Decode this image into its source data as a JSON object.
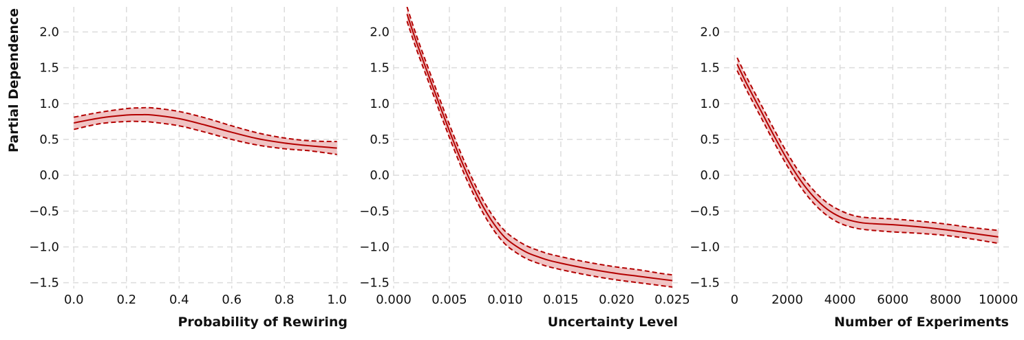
{
  "colors": {
    "line": "#b30000",
    "band": "#f0c4c4",
    "grid": "#dcdcdc"
  },
  "chart_data": [
    {
      "type": "line",
      "title": "",
      "xlabel": "Probability of Rewiring",
      "ylabel": "Partial Dependence",
      "xlim": [
        -0.04,
        1.04
      ],
      "ylim": [
        -1.58,
        2.35
      ],
      "xticks": [
        0.0,
        0.2,
        0.4,
        0.6,
        0.8,
        1.0
      ],
      "xtick_labels": [
        "0.0",
        "0.2",
        "0.4",
        "0.6",
        "0.8",
        "1.0"
      ],
      "yticks": [
        2.0,
        1.5,
        1.0,
        0.5,
        0.0,
        -0.5,
        -1.0,
        -1.5
      ],
      "ytick_labels": [
        "2.0",
        "1.5",
        "1.0",
        "0.5",
        "0.0",
        "−0.5",
        "−1.0",
        "−1.5"
      ],
      "grid": true,
      "x": [
        0.0,
        0.1,
        0.2,
        0.25,
        0.3,
        0.4,
        0.5,
        0.6,
        0.7,
        0.8,
        0.9,
        1.0
      ],
      "mean": [
        0.73,
        0.8,
        0.84,
        0.845,
        0.84,
        0.79,
        0.7,
        0.6,
        0.51,
        0.45,
        0.41,
        0.38
      ],
      "upper": [
        0.81,
        0.88,
        0.93,
        0.94,
        0.94,
        0.89,
        0.8,
        0.69,
        0.59,
        0.52,
        0.48,
        0.47
      ],
      "lower": [
        0.64,
        0.72,
        0.75,
        0.75,
        0.74,
        0.69,
        0.6,
        0.5,
        0.42,
        0.37,
        0.34,
        0.29
      ]
    },
    {
      "type": "line",
      "title": "",
      "xlabel": "Uncertainty Level",
      "ylabel": "",
      "xlim": [
        0.0,
        0.0255
      ],
      "ylim": [
        -1.58,
        2.35
      ],
      "xticks": [
        0.0,
        0.005,
        0.01,
        0.015,
        0.02,
        0.025
      ],
      "xtick_labels": [
        "0.000",
        "0.005",
        "0.010",
        "0.015",
        "0.020",
        "0.025"
      ],
      "yticks": [
        2.0,
        1.5,
        1.0,
        0.5,
        0.0,
        -0.5,
        -1.0,
        -1.5
      ],
      "ytick_labels": [
        "2.0",
        "1.5",
        "1.0",
        "0.5",
        "0.0",
        "−0.5",
        "−1.0",
        "−1.5"
      ],
      "grid": true,
      "x": [
        0.0012,
        0.002,
        0.003,
        0.004,
        0.005,
        0.006,
        0.007,
        0.008,
        0.009,
        0.01,
        0.011,
        0.012,
        0.013,
        0.014,
        0.016,
        0.018,
        0.02,
        0.022,
        0.024,
        0.025
      ],
      "mean": [
        2.25,
        1.88,
        1.45,
        1.03,
        0.62,
        0.23,
        -0.12,
        -0.43,
        -0.68,
        -0.87,
        -0.99,
        -1.08,
        -1.14,
        -1.19,
        -1.26,
        -1.32,
        -1.37,
        -1.41,
        -1.45,
        -1.47
      ],
      "upper": [
        2.35,
        1.97,
        1.54,
        1.12,
        0.71,
        0.32,
        -0.03,
        -0.34,
        -0.59,
        -0.78,
        -0.9,
        -0.99,
        -1.05,
        -1.1,
        -1.17,
        -1.23,
        -1.28,
        -1.32,
        -1.37,
        -1.39
      ],
      "lower": [
        2.15,
        1.78,
        1.36,
        0.94,
        0.53,
        0.14,
        -0.21,
        -0.52,
        -0.77,
        -0.96,
        -1.08,
        -1.17,
        -1.23,
        -1.28,
        -1.35,
        -1.41,
        -1.46,
        -1.5,
        -1.54,
        -1.56
      ]
    },
    {
      "type": "line",
      "title": "",
      "xlabel": "Number of Experiments",
      "ylabel": "",
      "xlim": [
        -400,
        10400
      ],
      "ylim": [
        -1.58,
        2.35
      ],
      "xticks": [
        0,
        2000,
        4000,
        6000,
        8000,
        10000
      ],
      "xtick_labels": [
        "0",
        "2000",
        "4000",
        "6000",
        "8000",
        "10000"
      ],
      "yticks": [
        2.0,
        1.5,
        1.0,
        0.5,
        0.0,
        -0.5,
        -1.0,
        -1.5
      ],
      "ytick_labels": [
        "2.0",
        "1.5",
        "1.0",
        "0.5",
        "0.0",
        "−0.5",
        "−1.0",
        "−1.5"
      ],
      "grid": true,
      "x": [
        100,
        500,
        1000,
        1500,
        2000,
        2500,
        3000,
        3500,
        4000,
        4500,
        5000,
        6000,
        7000,
        8000,
        9000,
        10000
      ],
      "mean": [
        1.55,
        1.25,
        0.9,
        0.55,
        0.22,
        -0.07,
        -0.3,
        -0.47,
        -0.58,
        -0.64,
        -0.67,
        -0.69,
        -0.72,
        -0.76,
        -0.81,
        -0.86
      ],
      "upper": [
        1.64,
        1.34,
        0.99,
        0.64,
        0.31,
        0.02,
        -0.21,
        -0.38,
        -0.49,
        -0.56,
        -0.59,
        -0.61,
        -0.64,
        -0.68,
        -0.73,
        -0.77
      ],
      "lower": [
        1.46,
        1.16,
        0.81,
        0.46,
        0.13,
        -0.16,
        -0.39,
        -0.56,
        -0.67,
        -0.73,
        -0.76,
        -0.79,
        -0.81,
        -0.84,
        -0.89,
        -0.95
      ]
    }
  ]
}
